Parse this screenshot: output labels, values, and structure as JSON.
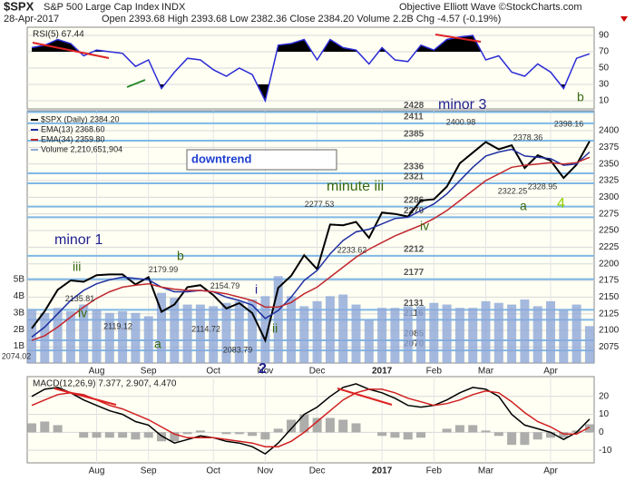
{
  "header": {
    "symbol": "$SPX",
    "name": "S&P 500 Large Cap Index",
    "exchange": "INDX",
    "date": "28-Apr-2017",
    "quote": "Open 2393.68  High 2393.68  Low 2382.36  Close 2384.20  Volume 2.2B  Chg -4.57 (-0.19%)",
    "source": "Objective Elliott Wave ©StockCharts.com"
  },
  "chart_data": [
    {
      "type": "line",
      "title": "RSI(5) 67.44",
      "ylim": [
        0,
        100
      ],
      "yticks": [
        10,
        30,
        50,
        70,
        90
      ],
      "series": [
        {
          "color": "#2b2bd6",
          "values": [
            75,
            78,
            85,
            80,
            65,
            72,
            70,
            68,
            52,
            60,
            25,
            45,
            62,
            60,
            48,
            40,
            50,
            42,
            10,
            78,
            80,
            85,
            60,
            85,
            75,
            72,
            55,
            75,
            60,
            58,
            78,
            72,
            85,
            88,
            90,
            60,
            65,
            45,
            40,
            55,
            45,
            25,
            62,
            67.44
          ]
        }
      ],
      "annotations": [
        {
          "text": "b",
          "color": "#3a6a10"
        }
      ]
    },
    {
      "type": "line",
      "categories": [
        null,
        null,
        null,
        null,
        null,
        "Aug",
        null,
        null,
        null,
        "Sep",
        null,
        null,
        null,
        null,
        "Oct",
        null,
        null,
        null,
        "Nov",
        null,
        null,
        null,
        "Dec",
        null,
        null,
        null,
        null,
        "2017",
        null,
        null,
        null,
        "Feb",
        null,
        null,
        null,
        "Mar",
        null,
        null,
        null,
        null,
        "Apr",
        null,
        null,
        null
      ],
      "ylim": [
        2051,
        2430
      ],
      "yticks": [
        2075,
        2100,
        2125,
        2150,
        2175,
        2200,
        2225,
        2250,
        2275,
        2300,
        2325,
        2350,
        2375,
        2400
      ],
      "y2lim": [
        0,
        15.1
      ],
      "y2ticks": [
        {
          "value": 1,
          "label": "1B"
        },
        {
          "value": 2,
          "label": "2B"
        },
        {
          "value": 3,
          "label": "3B"
        },
        {
          "value": 4,
          "label": "4B"
        },
        {
          "value": 5,
          "label": "5B"
        }
      ],
      "series": [
        {
          "name": "$SPX (Daily) 2384.20",
          "color": "#000000",
          "values": [
            2103,
            2129,
            2161,
            2175,
            2173,
            2183,
            2184,
            2184,
            2169,
            2180,
            2128,
            2139,
            2165,
            2168,
            2153,
            2133,
            2141,
            2126,
            2085,
            2164,
            2182,
            2213,
            2192,
            2259,
            2258,
            2263,
            2239,
            2277,
            2275,
            2271,
            2295,
            2297,
            2316,
            2351,
            2367,
            2383,
            2372,
            2378,
            2344,
            2363,
            2355,
            2329,
            2349,
            2384
          ]
        },
        {
          "name": "EMA(13) 2368.60",
          "color": "#1f2fa0",
          "values": [
            2090,
            2105,
            2125,
            2145,
            2160,
            2170,
            2176,
            2180,
            2178,
            2176,
            2165,
            2158,
            2158,
            2160,
            2158,
            2150,
            2145,
            2138,
            2118,
            2130,
            2150,
            2175,
            2190,
            2215,
            2235,
            2248,
            2252,
            2260,
            2268,
            2270,
            2280,
            2290,
            2305,
            2325,
            2345,
            2362,
            2368,
            2372,
            2362,
            2360,
            2358,
            2348,
            2350,
            2368
          ]
        },
        {
          "name": "EMA(34) 2359.80",
          "color": "#c0282d",
          "values": [
            2085,
            2092,
            2105,
            2120,
            2135,
            2148,
            2158,
            2165,
            2168,
            2170,
            2165,
            2162,
            2160,
            2160,
            2158,
            2155,
            2150,
            2145,
            2135,
            2135,
            2142,
            2155,
            2165,
            2180,
            2195,
            2210,
            2222,
            2232,
            2242,
            2250,
            2258,
            2268,
            2280,
            2295,
            2310,
            2325,
            2335,
            2345,
            2348,
            2350,
            2352,
            2350,
            2352,
            2360
          ]
        },
        {
          "name": "Volume 2,210,651,904",
          "type": "bar",
          "axis": "y2",
          "color": "#8fa8d8",
          "values": [
            3.2,
            3.0,
            3.3,
            3.1,
            3.5,
            3.2,
            3.0,
            3.1,
            3.0,
            2.8,
            4.2,
            3.9,
            3.5,
            3.5,
            3.4,
            3.6,
            3.7,
            3.8,
            4.0,
            5.2,
            4.0,
            3.4,
            3.7,
            4.0,
            4.1,
            3.5,
            2.6,
            3.3,
            3.3,
            3.4,
            3.4,
            3.6,
            3.5,
            3.3,
            3.3,
            3.7,
            3.6,
            3.5,
            3.8,
            3.4,
            3.7,
            3.2,
            3.5,
            2.21
          ]
        }
      ],
      "levels": [
        2428,
        2411,
        2385,
        2336,
        2321,
        2286,
        2270,
        2212,
        2177,
        2131,
        2116,
        2085,
        2070
      ],
      "level_color": "#7fb8e6",
      "price_labels": [
        2074.02,
        2135.81,
        2179.99,
        2119.12,
        2154.79,
        2114.72,
        2083.79,
        2277.53,
        2233.62,
        2400.98,
        2378.36,
        2322.25,
        2328.95,
        2398.16
      ],
      "box": "downtrend",
      "annotations": [
        {
          "text": "minor 1",
          "color": "#1f1f8f"
        },
        {
          "text": "iii",
          "color": "#3a6a10"
        },
        {
          "text": "iv",
          "color": "#3a6a10"
        },
        {
          "text": "a",
          "color": "#3a6a10"
        },
        {
          "text": "b",
          "color": "#3a6a10"
        },
        {
          "text": "i",
          "color": "#1f1f8f"
        },
        {
          "text": "ii",
          "color": "#3a6a10"
        },
        {
          "text": "2",
          "color": "#1f1f8f"
        },
        {
          "text": "minute iii",
          "color": "#3a6a10"
        },
        {
          "text": "iv",
          "color": "#3a6a10"
        },
        {
          "text": "minor 3",
          "color": "#1f1f8f"
        },
        {
          "text": "a",
          "color": "#3a6a10"
        },
        {
          "text": "4",
          "color": "#8fd000"
        }
      ]
    },
    {
      "type": "line",
      "title": "MACD(12,26,9) 7.377, 2.907, 4.470",
      "categories": [
        null,
        null,
        null,
        null,
        null,
        "Aug",
        null,
        null,
        null,
        "Sep",
        null,
        null,
        null,
        null,
        "Oct",
        null,
        null,
        null,
        "Nov",
        null,
        null,
        null,
        "Dec",
        null,
        null,
        null,
        null,
        "2017",
        null,
        null,
        null,
        "Feb",
        null,
        null,
        null,
        "Mar",
        null,
        null,
        null,
        null,
        "Apr",
        null,
        null,
        null
      ],
      "ylim": [
        -17,
        31
      ],
      "yticks": [
        -10,
        0,
        10,
        20
      ],
      "series": [
        {
          "color": "#000000",
          "values": [
            20,
            24,
            25,
            22,
            18,
            15,
            12,
            10,
            6,
            4,
            -2,
            -6,
            -4,
            -2,
            -3,
            -5,
            -6,
            -8,
            -12,
            -6,
            2,
            10,
            14,
            20,
            25,
            27,
            24,
            22,
            19,
            15,
            14,
            15,
            18,
            22,
            25,
            24,
            20,
            10,
            4,
            2,
            0,
            -4,
            0,
            7.377
          ]
        },
        {
          "color": "#d02020",
          "values": [
            15,
            18,
            21,
            22,
            21,
            18,
            15,
            13,
            10,
            7,
            3,
            -1,
            -3,
            -3,
            -3,
            -4,
            -5,
            -6,
            -8,
            -8,
            -5,
            0,
            6,
            12,
            18,
            22,
            24,
            24,
            22,
            19,
            17,
            15,
            16,
            18,
            21,
            23,
            22,
            17,
            11,
            6,
            3,
            -1,
            -1,
            2.907
          ]
        },
        {
          "type": "bar",
          "color": "#999999",
          "values": [
            5,
            6,
            4,
            0,
            -3,
            -3,
            -3,
            -3,
            -4,
            -3,
            -5,
            -5,
            -1,
            1,
            0,
            -1,
            -1,
            -2,
            -4,
            2,
            7,
            10,
            8,
            8,
            7,
            5,
            0,
            -2,
            -3,
            -4,
            -3,
            0,
            2,
            4,
            4,
            1,
            -2,
            -7,
            -7,
            -4,
            -3,
            -3,
            1,
            4.47
          ]
        }
      ]
    }
  ]
}
